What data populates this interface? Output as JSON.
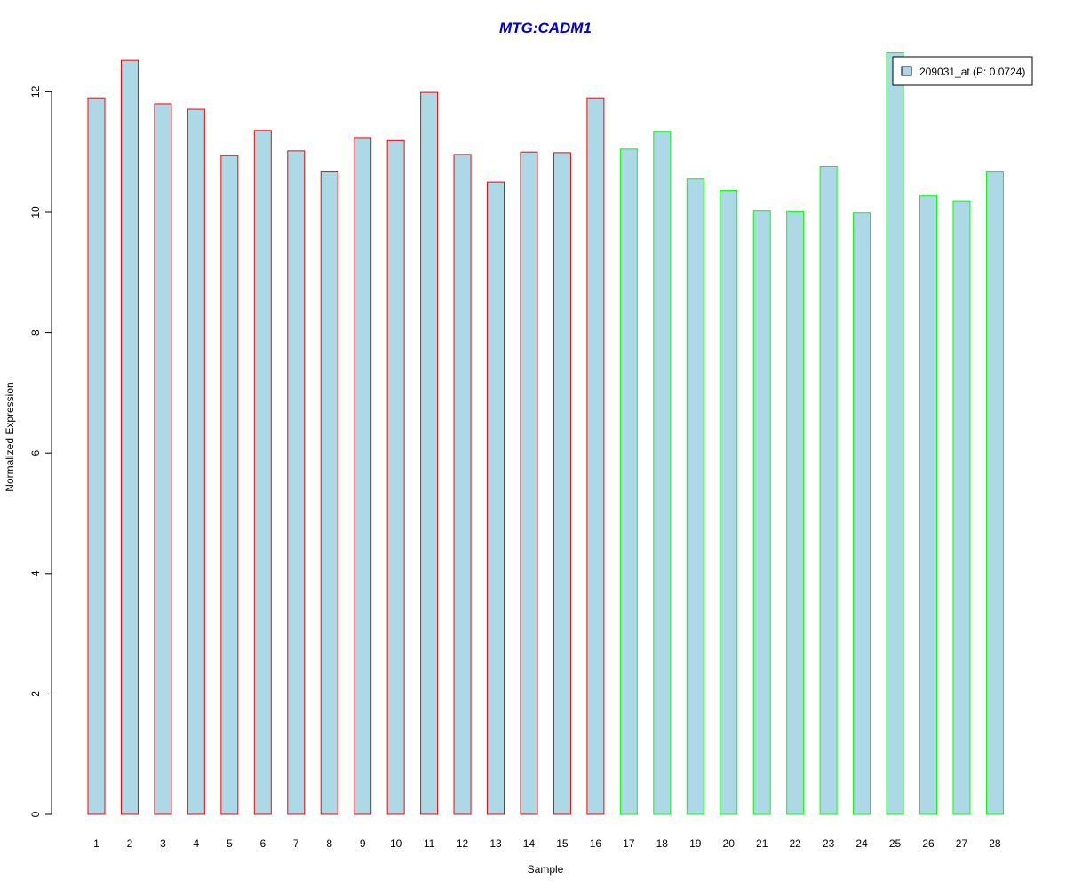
{
  "chart_data": {
    "type": "bar",
    "title": "MTG:CADM1",
    "xlabel": "Sample",
    "ylabel": "Normalized Expression",
    "categories": [
      "1",
      "2",
      "3",
      "4",
      "5",
      "6",
      "7",
      "8",
      "9",
      "10",
      "11",
      "12",
      "13",
      "14",
      "15",
      "16",
      "17",
      "18",
      "19",
      "20",
      "21",
      "22",
      "23",
      "24",
      "25",
      "26",
      "27",
      "28"
    ],
    "series": [
      {
        "name": "209031_at (P: 0.0724)",
        "values": [
          11.9,
          12.52,
          11.8,
          11.71,
          10.94,
          11.36,
          11.02,
          10.67,
          11.24,
          11.19,
          11.99,
          10.96,
          10.5,
          11.0,
          10.99,
          11.9,
          11.05,
          11.34,
          10.55,
          10.36,
          10.02,
          10.01,
          10.76,
          9.99,
          12.65,
          10.27,
          10.19,
          10.67
        ]
      }
    ],
    "groups": [
      {
        "samples": "1-16",
        "border_color": "#ff0000"
      },
      {
        "samples": "17-28",
        "border_color": "#00ff00"
      }
    ],
    "fill_color": "#add8e6",
    "title_color": "#0000cc",
    "yticks": [
      0,
      2,
      4,
      6,
      8,
      10,
      12
    ],
    "ylim": [
      0,
      12.75
    ],
    "grid": false,
    "legend_position": "top-right"
  }
}
